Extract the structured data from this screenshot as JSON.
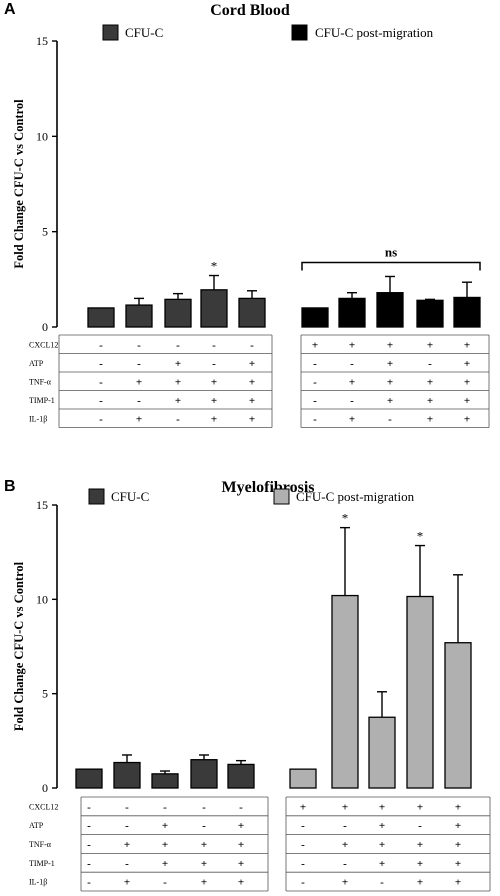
{
  "figure": {
    "panels": [
      {
        "letter": "A"
      },
      {
        "letter": "B"
      }
    ]
  },
  "chart_data": [
    {
      "type": "bar",
      "title": "Cord Blood",
      "ylabel": "Fold Change CFU-C vs Control",
      "xlabel": "",
      "ylim": [
        0,
        15
      ],
      "yticks": [
        "0",
        "5",
        "10",
        "15"
      ],
      "legend": [
        "CFU-C",
        "CFU-C post-migration"
      ],
      "colors": {
        "CFU-C": "#3a3a3a",
        "CFU-C post-migration": "#000000"
      },
      "series": [
        {
          "name": "CFU-C",
          "values": [
            1.0,
            1.15,
            1.45,
            1.95,
            1.5
          ],
          "errors": [
            0.0,
            0.35,
            0.3,
            0.75,
            0.4
          ]
        },
        {
          "name": "CFU-C post-migration",
          "values": [
            1.0,
            1.5,
            1.8,
            1.4,
            1.55
          ],
          "errors": [
            0.0,
            0.3,
            0.85,
            0.05,
            0.8
          ]
        }
      ],
      "annotations": [
        {
          "text": "*",
          "series": 0,
          "bar": 3
        },
        {
          "text": "ns",
          "series": 1,
          "span": [
            0,
            4
          ]
        }
      ],
      "conditions": {
        "rows": [
          "CXCL12",
          "ATP",
          "TNF-α",
          "TIMP-1",
          "IL-1β"
        ],
        "group1": [
          [
            "-",
            "-",
            "-",
            "-",
            "-"
          ],
          [
            "-",
            "-",
            "+",
            "-",
            "+"
          ],
          [
            "-",
            "+",
            "+",
            "+",
            "+"
          ],
          [
            "-",
            "-",
            "+",
            "+",
            "+"
          ],
          [
            "-",
            "+",
            "-",
            "+",
            "+"
          ]
        ],
        "group2": [
          [
            "+",
            "+",
            "+",
            "+",
            "+"
          ],
          [
            "-",
            "-",
            "+",
            "-",
            "+"
          ],
          [
            "-",
            "+",
            "+",
            "+",
            "+"
          ],
          [
            "-",
            "-",
            "+",
            "+",
            "+"
          ],
          [
            "-",
            "+",
            "-",
            "+",
            "+"
          ]
        ]
      }
    },
    {
      "type": "bar",
      "title": "Myelofibrosis",
      "ylabel": "Fold Change CFU-C vs Control",
      "xlabel": "",
      "ylim": [
        0,
        15
      ],
      "yticks": [
        "0",
        "5",
        "10",
        "15"
      ],
      "legend": [
        "CFU-C",
        "CFU-C post-migration"
      ],
      "colors": {
        "CFU-C": "#3a3a3a",
        "CFU-C post-migration": "#b0b0b0"
      },
      "series": [
        {
          "name": "CFU-C",
          "values": [
            1.0,
            1.35,
            0.75,
            1.5,
            1.25
          ],
          "errors": [
            0.0,
            0.4,
            0.15,
            0.25,
            0.2
          ]
        },
        {
          "name": "CFU-C post-migration",
          "values": [
            1.0,
            10.2,
            3.75,
            10.15,
            7.7
          ],
          "errors": [
            0.0,
            3.6,
            1.35,
            2.7,
            3.6
          ]
        }
      ],
      "annotations": [
        {
          "text": "*",
          "series": 1,
          "bar": 1
        },
        {
          "text": "*",
          "series": 1,
          "bar": 3
        }
      ],
      "conditions": {
        "rows": [
          "CXCL12",
          "ATP",
          "TNF-α",
          "TIMP-1",
          "IL-1β"
        ],
        "group1": [
          [
            "-",
            "-",
            "-",
            "-",
            "-"
          ],
          [
            "-",
            "-",
            "+",
            "-",
            "+"
          ],
          [
            "-",
            "+",
            "+",
            "+",
            "+"
          ],
          [
            "-",
            "-",
            "+",
            "+",
            "+"
          ],
          [
            "-",
            "+",
            "-",
            "+",
            "+"
          ]
        ],
        "group2": [
          [
            "+",
            "+",
            "+",
            "+",
            "+"
          ],
          [
            "-",
            "-",
            "+",
            "-",
            "+"
          ],
          [
            "-",
            "+",
            "+",
            "+",
            "+"
          ],
          [
            "-",
            "-",
            "+",
            "+",
            "+"
          ],
          [
            "-",
            "+",
            "-",
            "+",
            "+"
          ]
        ]
      }
    }
  ]
}
